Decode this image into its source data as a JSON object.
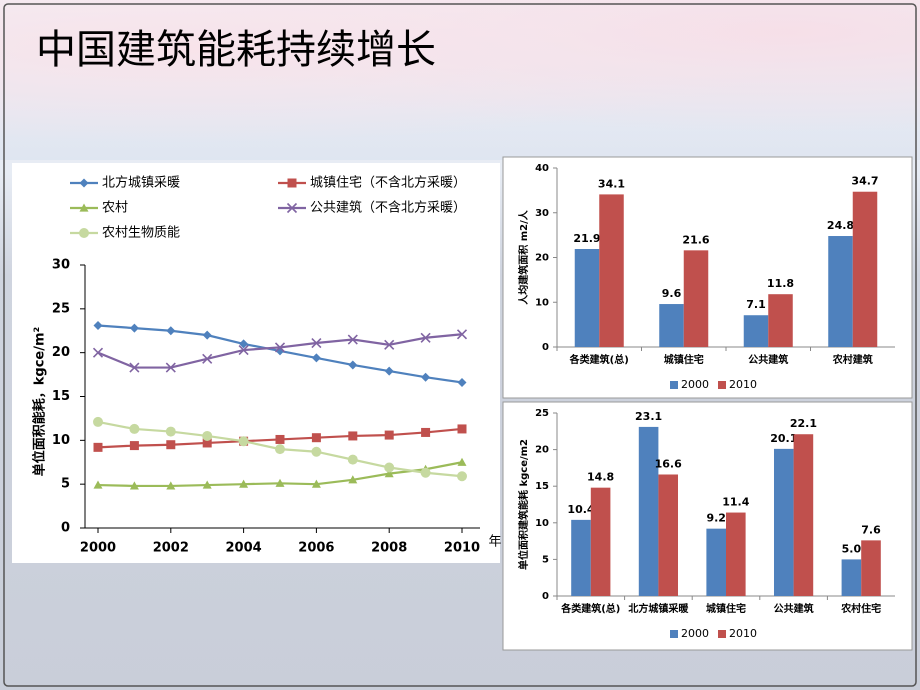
{
  "slide_title": "中国建筑能耗持续增长",
  "chart_data": [
    {
      "type": "line",
      "x": [
        2000,
        2001,
        2002,
        2003,
        2004,
        2005,
        2006,
        2007,
        2008,
        2009,
        2010
      ],
      "xlim": [
        2000,
        2010
      ],
      "xticks": [
        2000,
        2002,
        2004,
        2006,
        2008,
        2010
      ],
      "ylim": [
        0,
        30
      ],
      "yticks": [
        0,
        5,
        10,
        15,
        20,
        25,
        30
      ],
      "xlabel": "年",
      "ylabel": "单位面积能耗，kgce/m²",
      "grid": false,
      "series": [
        {
          "name": "北方城镇采暖",
          "color": "#4f81bd",
          "marker": "diamond",
          "values": [
            23.1,
            22.8,
            22.5,
            22.0,
            21.0,
            20.2,
            19.4,
            18.6,
            17.9,
            17.2,
            16.6
          ]
        },
        {
          "name": "城镇住宅（不含北方采暖）",
          "color": "#c0504d",
          "marker": "square",
          "values": [
            9.2,
            9.4,
            9.5,
            9.7,
            9.9,
            10.1,
            10.3,
            10.5,
            10.6,
            10.9,
            11.3
          ]
        },
        {
          "name": "农村",
          "color": "#9bbb59",
          "marker": "triangle",
          "values": [
            4.9,
            4.8,
            4.8,
            4.9,
            5.0,
            5.1,
            5.0,
            5.5,
            6.2,
            6.7,
            7.5
          ]
        },
        {
          "name": "公共建筑（不含北方采暖）",
          "color": "#8064a2",
          "marker": "cross",
          "values": [
            20.0,
            18.3,
            18.3,
            19.3,
            20.3,
            20.6,
            21.1,
            21.5,
            20.9,
            21.7,
            22.1
          ]
        },
        {
          "name": "农村生物质能",
          "color": "#c6d9a0",
          "marker": "circle",
          "values": [
            12.1,
            11.3,
            11.0,
            10.5,
            9.9,
            9.0,
            8.7,
            7.8,
            6.9,
            6.3,
            5.9
          ]
        }
      ]
    },
    {
      "type": "bar",
      "categories": [
        "各类建筑(总)",
        "城镇住宅",
        "公共建筑",
        "农村建筑"
      ],
      "ylim": [
        0,
        40
      ],
      "yticks": [
        0,
        10,
        20,
        30,
        40
      ],
      "ylabel": "人均建筑面积  m2/人",
      "grid": false,
      "series": [
        {
          "name": "2000",
          "color": "#4f81bd",
          "values": [
            21.9,
            9.6,
            7.1,
            24.8
          ],
          "value_labels": [
            "21.9",
            "9.6",
            "7.1",
            "24.8"
          ]
        },
        {
          "name": "2010",
          "color": "#c0504d",
          "values": [
            34.1,
            21.6,
            11.8,
            34.7
          ],
          "value_labels": [
            "34.1",
            "21.6",
            "11.8",
            "34.7"
          ]
        }
      ]
    },
    {
      "type": "bar",
      "categories": [
        "各类建筑(总)",
        "北方城镇采暖",
        "城镇住宅",
        "公共建筑",
        "农村住宅"
      ],
      "ylim": [
        0,
        25
      ],
      "yticks": [
        0,
        5,
        10,
        15,
        20,
        25
      ],
      "ylabel": "单位面积建筑能耗  kgce/m2",
      "grid": false,
      "series": [
        {
          "name": "2000",
          "color": "#4f81bd",
          "values": [
            10.4,
            23.1,
            9.2,
            20.1,
            5.0
          ],
          "value_labels": [
            "10.4",
            "23.1",
            "9.2",
            "20.1",
            "5.0"
          ]
        },
        {
          "name": "2010",
          "color": "#c0504d",
          "values": [
            14.8,
            16.6,
            11.4,
            22.1,
            7.6
          ],
          "value_labels": [
            "14.8",
            "16.6",
            "11.4",
            "22.1",
            "7.6"
          ]
        }
      ]
    }
  ]
}
